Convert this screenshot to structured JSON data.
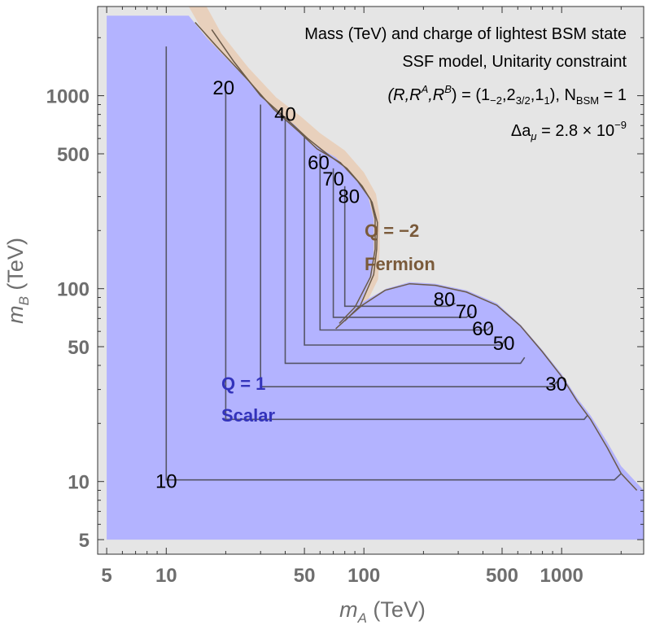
{
  "chart_data": {
    "type": "contour",
    "x_axis": {
      "label": "m",
      "label_sub": "A",
      "unit": " (TeV)",
      "scale": "log",
      "lim": [
        4.5,
        2600
      ],
      "ticks": [
        5,
        10,
        50,
        100,
        500,
        1000
      ]
    },
    "y_axis": {
      "label": "m",
      "label_sub": "B",
      "unit": " (TeV)",
      "scale": "log",
      "lim": [
        4.2,
        2900
      ],
      "ticks": [
        5,
        10,
        50,
        100,
        500,
        1000
      ]
    },
    "info_lines": [
      "Mass (TeV) and charge of lightest BSM state",
      "SSF model, Unitarity constraint",
      "(R,R^A,R^B) = (1_{-2}, 2_{3/2}, 1_1), N_BSM = 1",
      "Δa_μ = 2.8 × 10^-9"
    ],
    "info": {
      "line1": "Mass (TeV) and charge of lightest BSM state",
      "line2": "SSF model, Unitarity constraint",
      "line3_prefix": "(R,R",
      "line3_sup_a": "A",
      "line3_mid": ",R",
      "line3_sup_b": "B",
      "line3_eq": ") = (1",
      "line3_sub1": "−2",
      "line3_c2": ",2",
      "line3_sub2": "3/2",
      "line3_c3": ",1",
      "line3_sub3": "1",
      "line3_close": "), N",
      "line3_sub_nbsm": "BSM",
      "line3_tail": " = 1",
      "line4_prefix": "Δa",
      "line4_sub": "μ",
      "line4_mid": " = 2.8 × 10",
      "line4_sup": "−9"
    },
    "regions": [
      {
        "name": "lightest-scalar",
        "charge_label": "Q = 1",
        "type_label": "Scalar",
        "color": "#b3b3ff",
        "label_color": "#3333bb"
      },
      {
        "name": "lightest-fermion",
        "charge_label": "Q = −2",
        "type_label": "Fermion",
        "color": "#e8d0bc",
        "label_color": "#7a5a3a"
      },
      {
        "name": "excluded",
        "color": "#e5e5e5"
      }
    ],
    "contour_levels": [
      10,
      20,
      30,
      40,
      50,
      60,
      70,
      80
    ],
    "contour_labels": [
      {
        "text": "10",
        "mA": 10,
        "mB": 10
      },
      {
        "text": "20",
        "mA": 19.5,
        "mB": 1100
      },
      {
        "text": "40",
        "mA": 40,
        "mB": 800
      },
      {
        "text": "60",
        "mA": 59,
        "mB": 450
      },
      {
        "text": "70",
        "mA": 70,
        "mB": 370
      },
      {
        "text": "80",
        "mA": 84,
        "mB": 300
      },
      {
        "text": "80",
        "mA": 255,
        "mB": 88
      },
      {
        "text": "70",
        "mA": 330,
        "mB": 76
      },
      {
        "text": "60",
        "mA": 400,
        "mB": 62
      },
      {
        "text": "50",
        "mA": 510,
        "mB": 52
      },
      {
        "text": "30",
        "mA": 940,
        "mB": 32
      }
    ],
    "colors": {
      "frame": "#333333",
      "contour": "#555566",
      "fermion_contour": "#6a5a4a",
      "tick": "#6e6e6e"
    }
  }
}
